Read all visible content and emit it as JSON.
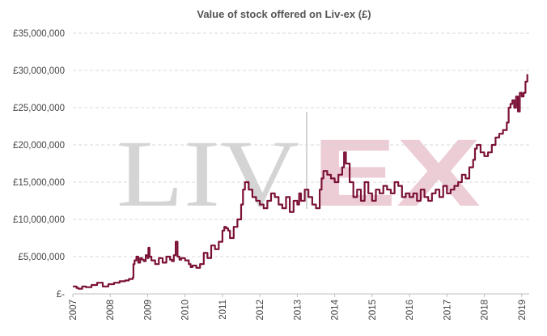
{
  "watermark": {
    "left_text": "LIV",
    "right_text": "EX",
    "left_color": "#d4d4d4",
    "right_color": "#ecccd5"
  },
  "chart_data": {
    "type": "line",
    "title": "Value of stock offered on Liv-ex (£)",
    "xlabel": "",
    "ylabel": "",
    "xlim": [
      2007.0,
      2019.2
    ],
    "ylim": [
      0,
      35000000
    ],
    "grid": true,
    "line_color": "#7b1136",
    "y_ticks": [
      {
        "value": 0,
        "label": "£-"
      },
      {
        "value": 5000000,
        "label": "£5,000,000"
      },
      {
        "value": 10000000,
        "label": "£10,000,000"
      },
      {
        "value": 15000000,
        "label": "£15,000,000"
      },
      {
        "value": 20000000,
        "label": "£20,000,000"
      },
      {
        "value": 25000000,
        "label": "£25,000,000"
      },
      {
        "value": 30000000,
        "label": "£30,000,000"
      },
      {
        "value": 35000000,
        "label": "£35,000,000"
      }
    ],
    "x_ticks": [
      {
        "value": 2007,
        "label": "2007"
      },
      {
        "value": 2008,
        "label": "2008"
      },
      {
        "value": 2009,
        "label": "2009"
      },
      {
        "value": 2010,
        "label": "2010"
      },
      {
        "value": 2011,
        "label": "2011"
      },
      {
        "value": 2012,
        "label": "2012"
      },
      {
        "value": 2013,
        "label": "2013"
      },
      {
        "value": 2014,
        "label": "2014"
      },
      {
        "value": 2015,
        "label": "2015"
      },
      {
        "value": 2016,
        "label": "2016"
      },
      {
        "value": 2017,
        "label": "2017"
      },
      {
        "value": 2018,
        "label": "2018"
      },
      {
        "value": 2019,
        "label": "2019"
      }
    ],
    "series": [
      {
        "x": [
          2007.0,
          2007.1,
          2007.15,
          2007.25,
          2007.35,
          2007.5,
          2007.65,
          2007.8,
          2007.95,
          2008.1,
          2008.25,
          2008.4,
          2008.5,
          2008.6,
          2008.62,
          2008.65,
          2008.7,
          2008.75,
          2008.8,
          2008.85,
          2008.9,
          2008.95,
          2009.0,
          2009.02,
          2009.05,
          2009.1,
          2009.2,
          2009.3,
          2009.4,
          2009.5,
          2009.6,
          2009.65,
          2009.7,
          2009.75,
          2009.8,
          2009.85,
          2009.9,
          2010.0,
          2010.1,
          2010.15,
          2010.2,
          2010.3,
          2010.4,
          2010.5,
          2010.6,
          2010.7,
          2010.8,
          2010.9,
          2011.0,
          2011.05,
          2011.1,
          2011.15,
          2011.2,
          2011.3,
          2011.4,
          2011.5,
          2011.55,
          2011.6,
          2011.7,
          2011.8,
          2011.9,
          2012.0,
          2012.1,
          2012.2,
          2012.3,
          2012.4,
          2012.5,
          2012.6,
          2012.7,
          2012.8,
          2012.9,
          2013.0,
          2013.05,
          2013.1,
          2013.2,
          2013.3,
          2013.4,
          2013.5,
          2013.6,
          2013.65,
          2013.7,
          2013.8,
          2013.9,
          2014.0,
          2014.1,
          2014.2,
          2014.25,
          2014.3,
          2014.4,
          2014.5,
          2014.6,
          2014.7,
          2014.8,
          2014.9,
          2015.0,
          2015.1,
          2015.2,
          2015.3,
          2015.4,
          2015.5,
          2015.6,
          2015.7,
          2015.8,
          2015.9,
          2016.0,
          2016.1,
          2016.2,
          2016.3,
          2016.4,
          2016.5,
          2016.6,
          2016.7,
          2016.8,
          2016.9,
          2017.0,
          2017.1,
          2017.2,
          2017.3,
          2017.4,
          2017.5,
          2017.6,
          2017.7,
          2017.75,
          2017.8,
          2017.9,
          2018.0,
          2018.1,
          2018.2,
          2018.3,
          2018.4,
          2018.5,
          2018.6,
          2018.65,
          2018.7,
          2018.75,
          2018.8,
          2018.85,
          2018.9,
          2018.95,
          2019.0,
          2019.05,
          2019.1,
          2019.15
        ],
        "values": [
          1000000,
          800000,
          700000,
          1000000,
          900000,
          1200000,
          1500000,
          1000000,
          1300000,
          1500000,
          1700000,
          1800000,
          2000000,
          2200000,
          4000000,
          4500000,
          5000000,
          4200000,
          4800000,
          4600000,
          4400000,
          5200000,
          4800000,
          6200000,
          5000000,
          4500000,
          4000000,
          4800000,
          4200000,
          5000000,
          4600000,
          4400000,
          5200000,
          7000000,
          5000000,
          4600000,
          4800000,
          4500000,
          4000000,
          3600000,
          3800000,
          3500000,
          4000000,
          5500000,
          4800000,
          6500000,
          6000000,
          7000000,
          8500000,
          9000000,
          8800000,
          8500000,
          7500000,
          9000000,
          10000000,
          12000000,
          14000000,
          15000000,
          14000000,
          13000000,
          12500000,
          12000000,
          11500000,
          12500000,
          13500000,
          13000000,
          12000000,
          11500000,
          13000000,
          11000000,
          12500000,
          12000000,
          13500000,
          12500000,
          14000000,
          13000000,
          12000000,
          11500000,
          14000000,
          15500000,
          16500000,
          16000000,
          15500000,
          15000000,
          16000000,
          17000000,
          19000000,
          17500000,
          15000000,
          13000000,
          14000000,
          12500000,
          15000000,
          13500000,
          12500000,
          14000000,
          13500000,
          14500000,
          14000000,
          13500000,
          15000000,
          14500000,
          13000000,
          13500000,
          13000000,
          13500000,
          12500000,
          14000000,
          13000000,
          12500000,
          13500000,
          14000000,
          13000000,
          14500000,
          13500000,
          14000000,
          14500000,
          15000000,
          16000000,
          15500000,
          17000000,
          18000000,
          19500000,
          20000000,
          19000000,
          18500000,
          19000000,
          20000000,
          21000000,
          21500000,
          22000000,
          23000000,
          25000000,
          25500000,
          26000000,
          25000000,
          26500000,
          24500000,
          27000000,
          26500000,
          27000000,
          28500000,
          29500000
        ]
      }
    ]
  }
}
